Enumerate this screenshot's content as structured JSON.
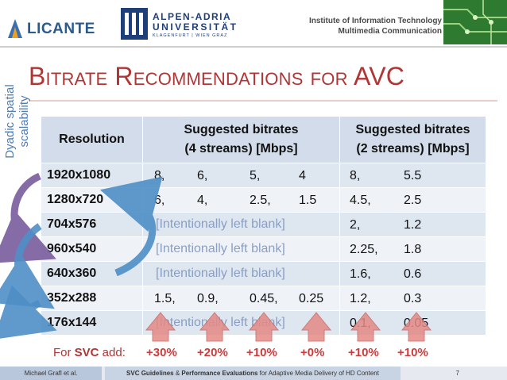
{
  "header": {
    "left_logo_text": "LICANTE",
    "university_line1": "ALPEN-ADRIA",
    "university_line2": "UNIVERSITÄT",
    "university_line3": "KLAGENFURT | WIEN GRAZ",
    "institute_line1": "Institute of Information Technology",
    "institute_line2": "Multimedia Communication"
  },
  "side_label": {
    "line1": "Dyadic spatial",
    "line2": "scalability"
  },
  "title": "Bitrate Recommendations for AVC",
  "table": {
    "headers": {
      "col1": "Resolution",
      "col2_line1": "Suggested bitrates",
      "col2_line2": "(4 streams) [Mbps]",
      "col3_line1": "Suggested bitrates",
      "col3_line2": "(2 streams) [Mbps]"
    },
    "rows": [
      {
        "resolution": "1920x1080",
        "four": [
          "8,",
          "6,",
          "5,",
          "4"
        ],
        "blank": "",
        "two": [
          "8,",
          "5.5"
        ]
      },
      {
        "resolution": "1280x720",
        "four": [
          "6,",
          "4,",
          "2.5,",
          "1.5"
        ],
        "blank": "",
        "two": [
          "4.5,",
          "2.5"
        ]
      },
      {
        "resolution": "704x576",
        "four": [],
        "blank": "[Intentionally left blank]",
        "two": [
          "2,",
          "1.2"
        ]
      },
      {
        "resolution": "960x540",
        "four": [],
        "blank": "[Intentionally left blank]",
        "two": [
          "2.25,",
          "1.8"
        ]
      },
      {
        "resolution": "640x360",
        "four": [],
        "blank": "[Intentionally left blank]",
        "two": [
          "1.6,",
          "0.6"
        ]
      },
      {
        "resolution": "352x288",
        "four": [
          "1.5,",
          "0.9,",
          "0.45,",
          "0.25"
        ],
        "blank": "",
        "two": [
          "1.2,",
          "0.3"
        ]
      },
      {
        "resolution": "176x144",
        "four": [],
        "blank": "[Intentionally left blank]",
        "two": [
          "0.1,",
          "0.05"
        ]
      }
    ]
  },
  "svc": {
    "prefix": "For ",
    "svc_word": "SVC",
    "suffix": " add:",
    "increments": [
      "+30%",
      "+20%",
      "+10%",
      "+0%",
      "+10%",
      "+10%"
    ]
  },
  "footer": {
    "author": "Michael Grafl et al.",
    "title_bold1": "SVC Guidelines",
    "title_mid": " & ",
    "title_bold2": "Performance Evaluations",
    "title_rest": " for Adaptive Media Delivery of HD Content",
    "page_number": "7"
  },
  "colors": {
    "title": "#b03535",
    "header_fill": "#d2dcea",
    "row_odd": "#dee6f0",
    "row_even": "#eff3f8",
    "arrow_up": "#e58a86",
    "arrow_blue": "#4f8fc6",
    "arrow_purple": "#7a5d9e"
  }
}
